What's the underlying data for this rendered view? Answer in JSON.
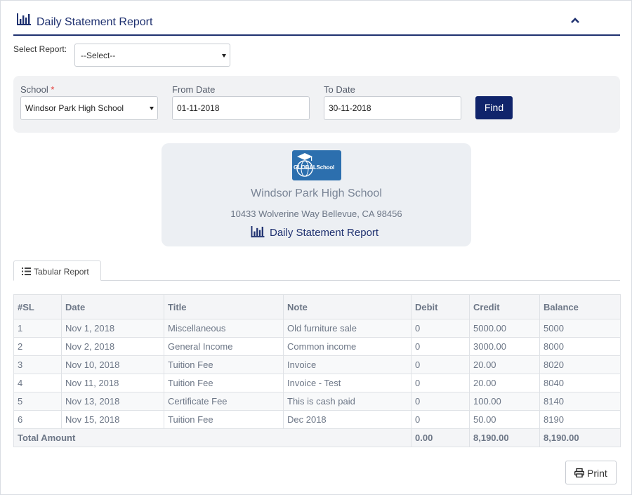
{
  "header": {
    "title": "Daily Statement Report",
    "title_icon": "bar-chart-icon",
    "collapse_icon": "chevron-up-icon"
  },
  "select_report": {
    "label": "Select Report:",
    "value": "--Select--"
  },
  "filters": {
    "school_label": "School",
    "required_mark": "*",
    "school_value": "Windsor Park High School",
    "from_label": "From Date",
    "from_value": "01-11-2018",
    "to_label": "To Date",
    "to_value": "30-11-2018",
    "find_label": "Find"
  },
  "school_card": {
    "logo_text": "GLOBALSchool",
    "name": "Windsor Park High School",
    "address": "10433 Wolverine Way Bellevue, CA 98456",
    "report_title": "Daily Statement Report"
  },
  "tab": {
    "label": "Tabular Report",
    "icon": "list-icon"
  },
  "table": {
    "headers": [
      "#SL",
      "Date",
      "Title",
      "Note",
      "Debit",
      "Credit",
      "Balance"
    ],
    "rows": [
      [
        "1",
        "Nov 1, 2018",
        "Miscellaneous",
        "Old furniture sale",
        "0",
        "5000.00",
        "5000"
      ],
      [
        "2",
        "Nov 2, 2018",
        "General Income",
        "Common income",
        "0",
        "3000.00",
        "8000"
      ],
      [
        "3",
        "Nov 10, 2018",
        "Tuition Fee",
        "Invoice",
        "0",
        "20.00",
        "8020"
      ],
      [
        "4",
        "Nov 11, 2018",
        "Tuition Fee",
        "Invoice - Test",
        "0",
        "20.00",
        "8040"
      ],
      [
        "5",
        "Nov 13, 2018",
        "Certificate Fee",
        "This is cash paid",
        "0",
        "100.00",
        "8140"
      ],
      [
        "6",
        "Nov 15, 2018",
        "Tuition Fee",
        "Dec 2018",
        "0",
        "50.00",
        "8190"
      ]
    ],
    "total": {
      "label": "Total Amount",
      "debit": "0.00",
      "credit": "8,190.00",
      "balance": "8,190.00"
    }
  },
  "print": {
    "label": "Print",
    "icon": "printer-icon"
  },
  "colors": {
    "accent": "#1f3170",
    "button": "#10246b",
    "logo": "#2c6fae"
  }
}
